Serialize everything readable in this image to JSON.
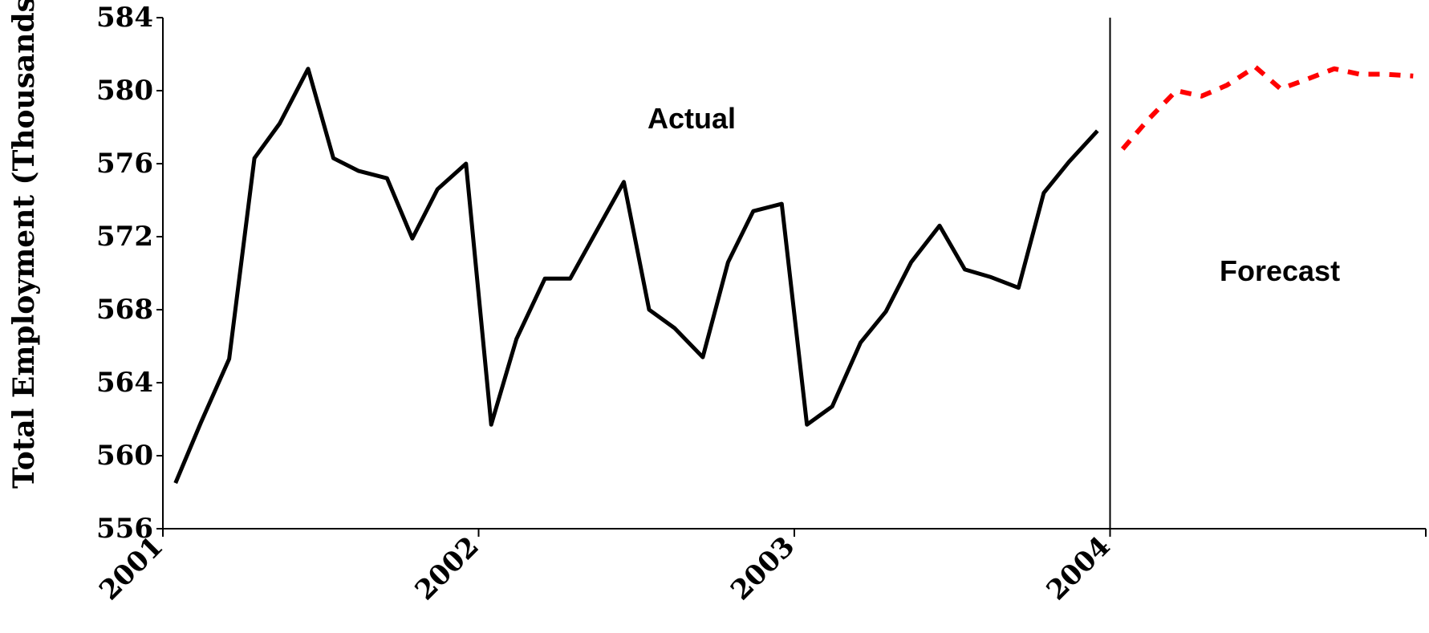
{
  "chart_data": {
    "type": "line",
    "title": "",
    "ylabel": "Total Employment (Thousands",
    "xlabel": "",
    "ylim": [
      556,
      584
    ],
    "yticks": [
      "556",
      "560",
      "564",
      "568",
      "572",
      "576",
      "580",
      "584"
    ],
    "xlim": [
      2001,
      2005
    ],
    "xticks": [
      "2001",
      "2002",
      "2003",
      "2004"
    ],
    "grid": false,
    "legend": "none",
    "annotations": [
      "Actual",
      "Forecast"
    ],
    "series": [
      {
        "style": "solid",
        "color": "#000000",
        "points": [
          [
            2001.04,
            558.5
          ],
          [
            2001.12,
            561.8
          ],
          [
            2001.21,
            565.3
          ],
          [
            2001.29,
            576.3
          ],
          [
            2001.37,
            578.2
          ],
          [
            2001.46,
            581.2
          ],
          [
            2001.54,
            576.3
          ],
          [
            2001.62,
            575.6
          ],
          [
            2001.71,
            575.2
          ],
          [
            2001.79,
            571.9
          ],
          [
            2001.87,
            574.6
          ],
          [
            2001.96,
            576.0
          ],
          [
            2002.04,
            561.7
          ],
          [
            2002.12,
            566.4
          ],
          [
            2002.21,
            569.7
          ],
          [
            2002.29,
            569.7
          ],
          [
            2002.37,
            572.2
          ],
          [
            2002.46,
            575.0
          ],
          [
            2002.54,
            568.0
          ],
          [
            2002.62,
            567.0
          ],
          [
            2002.71,
            565.4
          ],
          [
            2002.79,
            570.6
          ],
          [
            2002.87,
            573.4
          ],
          [
            2002.96,
            573.8
          ],
          [
            2003.04,
            561.7
          ],
          [
            2003.12,
            562.7
          ],
          [
            2003.21,
            566.2
          ],
          [
            2003.29,
            567.9
          ],
          [
            2003.37,
            570.6
          ],
          [
            2003.46,
            572.6
          ],
          [
            2003.54,
            570.2
          ],
          [
            2003.62,
            569.8
          ],
          [
            2003.71,
            569.2
          ],
          [
            2003.79,
            574.4
          ],
          [
            2003.87,
            576.1
          ],
          [
            2003.96,
            577.8
          ]
        ]
      },
      {
        "style": "dashed",
        "color": "#ff0000",
        "points": [
          [
            2004.04,
            576.8
          ],
          [
            2004.12,
            578.4
          ],
          [
            2004.21,
            580.0
          ],
          [
            2004.29,
            579.7
          ],
          [
            2004.37,
            580.3
          ],
          [
            2004.46,
            581.3
          ],
          [
            2004.54,
            580.1
          ],
          [
            2004.62,
            580.6
          ],
          [
            2004.71,
            581.2
          ],
          [
            2004.79,
            580.9
          ],
          [
            2004.87,
            580.9
          ],
          [
            2004.96,
            580.8
          ]
        ]
      }
    ]
  }
}
